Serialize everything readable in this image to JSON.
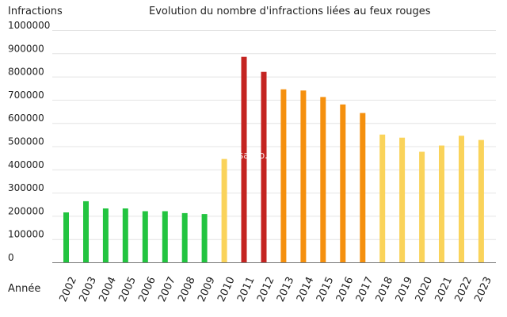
{
  "chart_data": {
    "type": "bar",
    "title": "Evolution du nombre d'infractions liées au feux rouges",
    "ylabel": "Infractions",
    "xlabel": "Année",
    "ylim": [
      0,
      1000000
    ],
    "yticks": [
      "0",
      "100000",
      "200000",
      "300000",
      "400000",
      "500000",
      "600000",
      "700000",
      "800000",
      "900000",
      "1000000"
    ],
    "watermark": "Fichesauto.fr",
    "categories": [
      "2002",
      "2003",
      "2004",
      "2005",
      "2006",
      "2007",
      "2008",
      "2009",
      "2010",
      "2011",
      "2012",
      "2013",
      "2014",
      "2015",
      "2016",
      "2017",
      "2018",
      "2019",
      "2020",
      "2021",
      "2022",
      "2023"
    ],
    "values": [
      215000,
      263000,
      232000,
      232000,
      220000,
      220000,
      212000,
      208000,
      445000,
      885000,
      820000,
      745000,
      740000,
      712000,
      680000,
      643000,
      550000,
      537000,
      476000,
      503000,
      545000,
      527000
    ],
    "bar_colors": [
      "#22c440",
      "#22c440",
      "#22c440",
      "#22c440",
      "#22c440",
      "#22c440",
      "#22c440",
      "#22c440",
      "#fad35a",
      "#c42421",
      "#c42421",
      "#f5900e",
      "#f5900e",
      "#f5900e",
      "#f5900e",
      "#f5900e",
      "#fad35a",
      "#fad35a",
      "#fad35a",
      "#fad35a",
      "#fad35a",
      "#fad35a"
    ],
    "grid": true
  }
}
